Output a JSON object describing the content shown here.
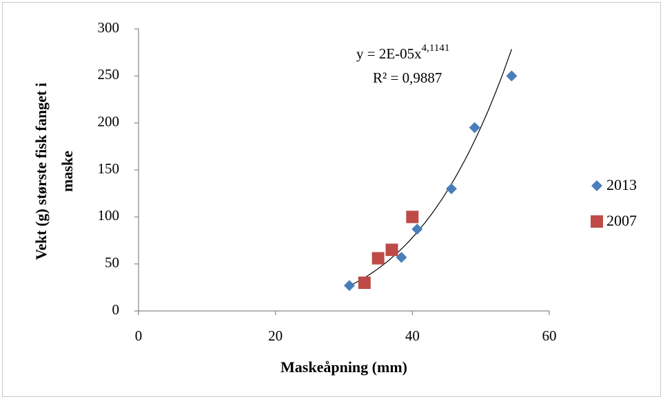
{
  "chart_data": {
    "type": "scatter",
    "xlabel": "Maskeåpning (mm)",
    "ylabel": [
      "Vekt (g) største fisk fanget i",
      "maske"
    ],
    "xlim": [
      0,
      60
    ],
    "xticks": [
      0,
      20,
      40,
      60
    ],
    "ylim": [
      0,
      300
    ],
    "yticks": [
      0,
      50,
      100,
      150,
      200,
      250,
      300
    ],
    "grid": false,
    "legend": "right",
    "series": [
      {
        "name": "2013",
        "color": "#4a7ebb",
        "marker": "diamond",
        "x": [
          30.8,
          38.4,
          40.7,
          45.7,
          49.1,
          54.5
        ],
        "values": [
          27,
          57,
          87,
          130,
          195,
          250
        ]
      },
      {
        "name": "2007",
        "color": "#be4b48",
        "marker": "square",
        "x": [
          33,
          35,
          37,
          40
        ],
        "values": [
          30,
          56,
          65,
          100
        ]
      }
    ],
    "trendline": {
      "series": 0,
      "kind": "power",
      "coefficient": 2e-05,
      "exponent": 4.1141,
      "equation": "y = 2E-05x",
      "exponent_label": "4,1141",
      "r_squared": "R² = 0,9887"
    }
  }
}
